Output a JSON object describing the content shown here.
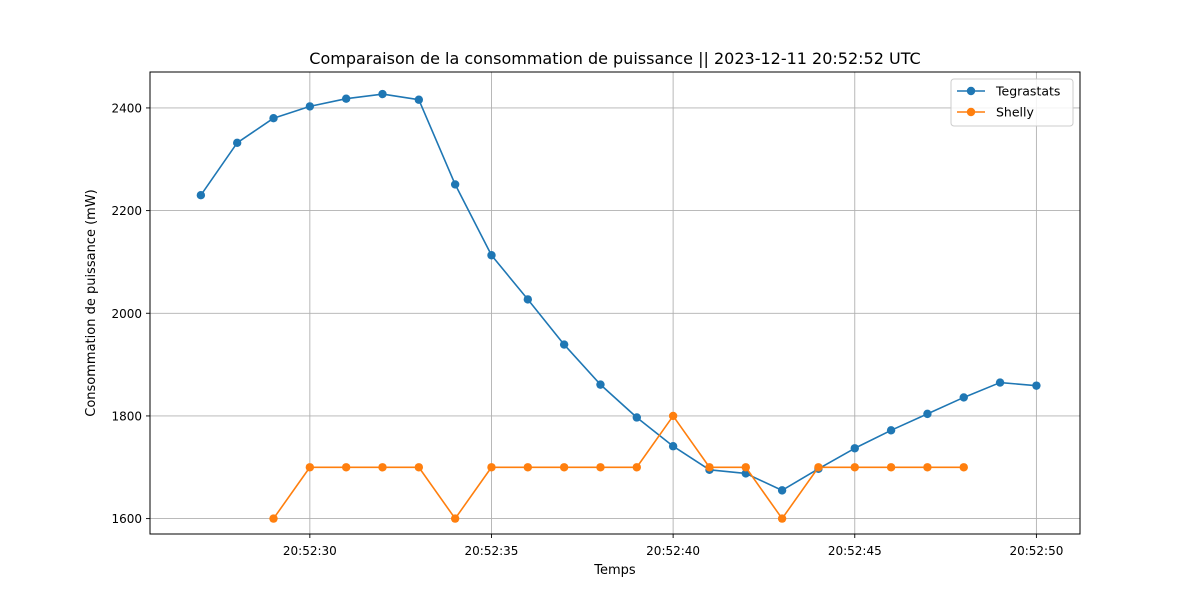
{
  "chart_data": {
    "type": "line",
    "title": "Comparaison de la consommation de puissance  ||  2023-12-11 20:52:52 UTC",
    "xlabel": "Temps",
    "ylabel": "Consommation de puissance (mW)",
    "x_ticks": [
      "20:52:30",
      "20:52:35",
      "20:52:40",
      "20:52:45",
      "20:52:50"
    ],
    "y_ticks": [
      1600,
      1800,
      2000,
      2200,
      2400
    ],
    "xlim": [
      "20:52:25.6",
      "20:52:51.2"
    ],
    "ylim": [
      1570,
      2470
    ],
    "grid": true,
    "legend_position": "top-right",
    "series": [
      {
        "name": "Tegrastats",
        "color": "#1f77b4",
        "x": [
          "20:52:27",
          "20:52:28",
          "20:52:29",
          "20:52:30",
          "20:52:31",
          "20:52:32",
          "20:52:33",
          "20:52:34",
          "20:52:35",
          "20:52:36",
          "20:52:37",
          "20:52:38",
          "20:52:39",
          "20:52:40",
          "20:52:41",
          "20:52:42",
          "20:52:43",
          "20:52:44",
          "20:52:45",
          "20:52:46",
          "20:52:47",
          "20:52:48",
          "20:52:49",
          "20:52:50"
        ],
        "values": [
          2230,
          2332,
          2380,
          2403,
          2418,
          2427,
          2416,
          2251,
          2113,
          2027,
          1939,
          1861,
          1797,
          1741,
          1695,
          1688,
          1655,
          1697,
          1737,
          1772,
          1804,
          1836,
          1865,
          1859
        ]
      },
      {
        "name": "Shelly",
        "color": "#ff7f0e",
        "x": [
          "20:52:29",
          "20:52:30",
          "20:52:31",
          "20:52:32",
          "20:52:33",
          "20:52:34",
          "20:52:35",
          "20:52:36",
          "20:52:37",
          "20:52:38",
          "20:52:39",
          "20:52:40",
          "20:52:41",
          "20:52:42",
          "20:52:43",
          "20:52:44",
          "20:52:45",
          "20:52:46",
          "20:52:47",
          "20:52:48"
        ],
        "values": [
          1600,
          1700,
          1700,
          1700,
          1700,
          1600,
          1700,
          1700,
          1700,
          1700,
          1700,
          1800,
          1700,
          1700,
          1600,
          1700,
          1700,
          1700,
          1700,
          1700
        ]
      }
    ]
  }
}
